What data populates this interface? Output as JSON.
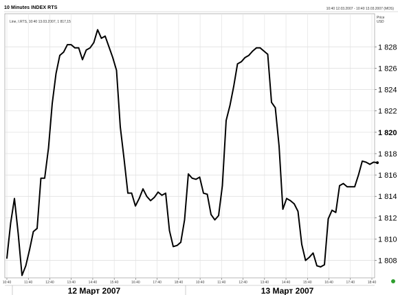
{
  "header": {
    "title": "10 Minutes INDEX RTS",
    "range_text": "10:40 12.03.2007 - 10:40 13.03.2007 (MOS)",
    "legend_text": "Line, I.RTS, 10:40 13.03.2007, 1 817,15"
  },
  "y_axis": {
    "unit_line1": "Price",
    "unit_line2": "USD"
  },
  "status": {
    "green_indicator": "#2e9e2e"
  },
  "chart_data": {
    "type": "line",
    "title": "10 Minutes INDEX RTS",
    "ylabel": "Price USD",
    "xlabel": "",
    "ylim": [
      1806.5,
      1830.2
    ],
    "grid": true,
    "y_ticks": [
      {
        "value": 1808,
        "label": "1 808",
        "bold": false
      },
      {
        "value": 1810,
        "label": "1 810",
        "bold": false
      },
      {
        "value": 1812,
        "label": "1 812",
        "bold": false
      },
      {
        "value": 1814,
        "label": "1 814",
        "bold": false
      },
      {
        "value": 1816,
        "label": "1 816",
        "bold": false
      },
      {
        "value": 1818,
        "label": "1 818",
        "bold": false
      },
      {
        "value": 1820,
        "label": "1 820",
        "bold": true
      },
      {
        "value": 1822,
        "label": "1 822",
        "bold": false
      },
      {
        "value": 1824,
        "label": "1 824",
        "bold": false
      },
      {
        "value": 1826,
        "label": "1 826",
        "bold": false
      },
      {
        "value": 1828,
        "label": "1 828",
        "bold": false
      }
    ],
    "x_ticks": [
      "10:40",
      "11:40",
      "12:40",
      "13:40",
      "14:40",
      "15:40",
      "16:40",
      "17:40",
      "18:40",
      "10:40",
      "11:40",
      "12:40",
      "13:40",
      "14:40",
      "15:40",
      "16:40",
      "17:40",
      "18:40"
    ],
    "date_labels": [
      {
        "text": "12 Март 2007",
        "tick_index": 4
      },
      {
        "text": "13 Март 2007",
        "tick_index": 13
      }
    ],
    "end_marker_label": "1 817,15",
    "series": [
      {
        "name": "I.RTS",
        "color": "#000000",
        "values": [
          1808.2,
          1811.5,
          1813.8,
          1810.5,
          1806.6,
          1807.5,
          1809,
          1810.7,
          1811,
          1815.7,
          1815.7,
          1818.5,
          1822.7,
          1825.5,
          1827.2,
          1827.5,
          1828.2,
          1828.2,
          1827.9,
          1827.9,
          1826.8,
          1827.7,
          1827.9,
          1828.4,
          1829.6,
          1828.8,
          1829,
          1828,
          1827,
          1825.8,
          1820.5,
          1817.5,
          1814.3,
          1814.3,
          1813.1,
          1813.8,
          1814.7,
          1814,
          1813.6,
          1813.9,
          1814.4,
          1814.1,
          1814.3,
          1810.8,
          1809.3,
          1809.4,
          1809.7,
          1811.8,
          1816.1,
          1815.7,
          1815.6,
          1815.8,
          1814.3,
          1814.2,
          1812.3,
          1811.8,
          1812.2,
          1815,
          1821.1,
          1822.5,
          1824.3,
          1826.4,
          1826.6,
          1827,
          1827.2,
          1827.6,
          1827.9,
          1827.9,
          1827.6,
          1827.3,
          1822.8,
          1822.3,
          1818.7,
          1812.8,
          1813.8,
          1813.6,
          1813.3,
          1812.6,
          1809.5,
          1808,
          1808.3,
          1808.7,
          1807.5,
          1807.4,
          1807.6,
          1811.9,
          1812.7,
          1812.5,
          1815,
          1815.2,
          1814.9,
          1814.9,
          1814.9,
          1816,
          1817.3,
          1817.2,
          1817,
          1817.2,
          1817.15
        ]
      }
    ]
  }
}
